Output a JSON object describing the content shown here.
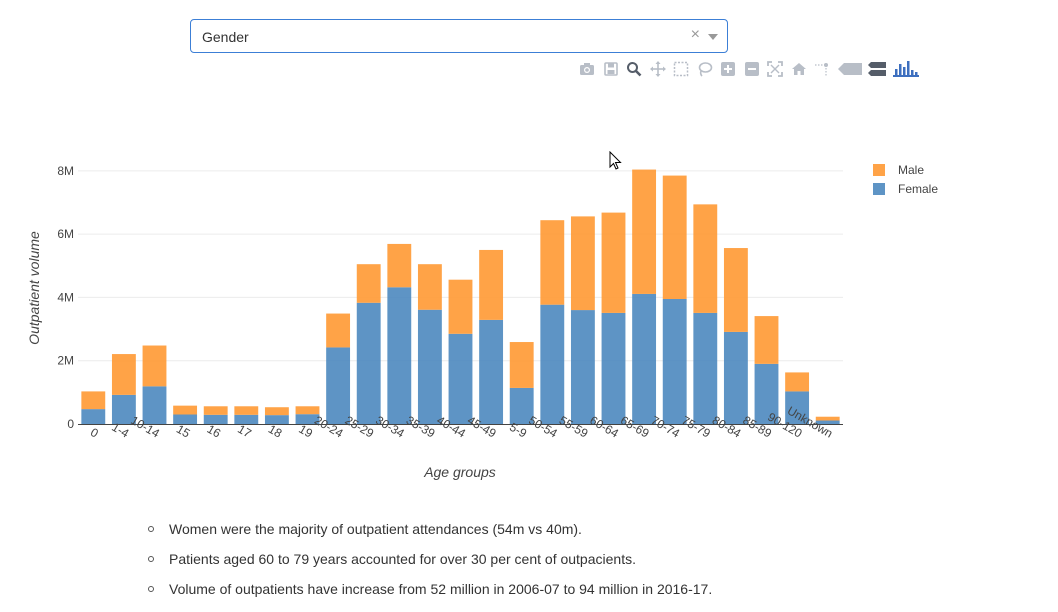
{
  "dropdown": {
    "selected": "Gender",
    "clear_glyph": "×"
  },
  "modebar": {
    "icons": [
      "camera-icon",
      "save-icon",
      "zoom-icon",
      "pan-icon",
      "box-select-icon",
      "lasso-select-icon",
      "zoom-in-icon",
      "zoom-out-icon",
      "autoscale-icon",
      "reset-axes-icon",
      "spike-lines-icon",
      "hover-closest-icon",
      "hover-compare-icon",
      "plotly-logo-icon"
    ]
  },
  "colors": {
    "male": "#ff9933",
    "female": "#4c88bf",
    "accent": "#3c7fd6"
  },
  "chart_data": {
    "type": "bar",
    "stacked": true,
    "title": "",
    "xlabel": "Age groups",
    "ylabel": "Outpatient volume",
    "ylim": [
      0,
      8500000
    ],
    "yticks": [
      0,
      2000000,
      4000000,
      6000000,
      8000000
    ],
    "ytick_labels": [
      "0",
      "2M",
      "4M",
      "6M",
      "8M"
    ],
    "grid": true,
    "legend_position": "top-right",
    "categories": [
      "0",
      "1-4",
      "10-14",
      "15",
      "16",
      "17",
      "18",
      "19",
      "20-24",
      "25-29",
      "30-34",
      "35-39",
      "40-44",
      "45-49",
      "5-9",
      "50-54",
      "55-59",
      "60-64",
      "65-69",
      "70-74",
      "75-79",
      "80-84",
      "85-89",
      "90-120",
      "Unknown"
    ],
    "series": [
      {
        "name": "Female",
        "color": "#4c88bf",
        "values": [
          470000,
          920000,
          1190000,
          300000,
          290000,
          290000,
          280000,
          310000,
          2420000,
          3830000,
          4320000,
          3610000,
          2850000,
          3290000,
          1140000,
          3770000,
          3600000,
          3510000,
          4110000,
          3950000,
          3510000,
          2910000,
          1900000,
          1030000,
          110000
        ]
      },
      {
        "name": "Male",
        "color": "#ff9933",
        "values": [
          560000,
          1290000,
          1290000,
          280000,
          270000,
          270000,
          250000,
          250000,
          1070000,
          1220000,
          1370000,
          1440000,
          1710000,
          2210000,
          1450000,
          2670000,
          2960000,
          3170000,
          3930000,
          3900000,
          3430000,
          2650000,
          1510000,
          600000,
          120000
        ]
      }
    ]
  },
  "notes": [
    "Women were the majority of outpatient attendances (54m vs 40m).",
    "Patients aged 60 to 79 years accounted for over 30 per cent of outpacients.",
    "Volume of outpatients have increase from 52 million in 2006-07 to 94 million in 2016-17."
  ]
}
